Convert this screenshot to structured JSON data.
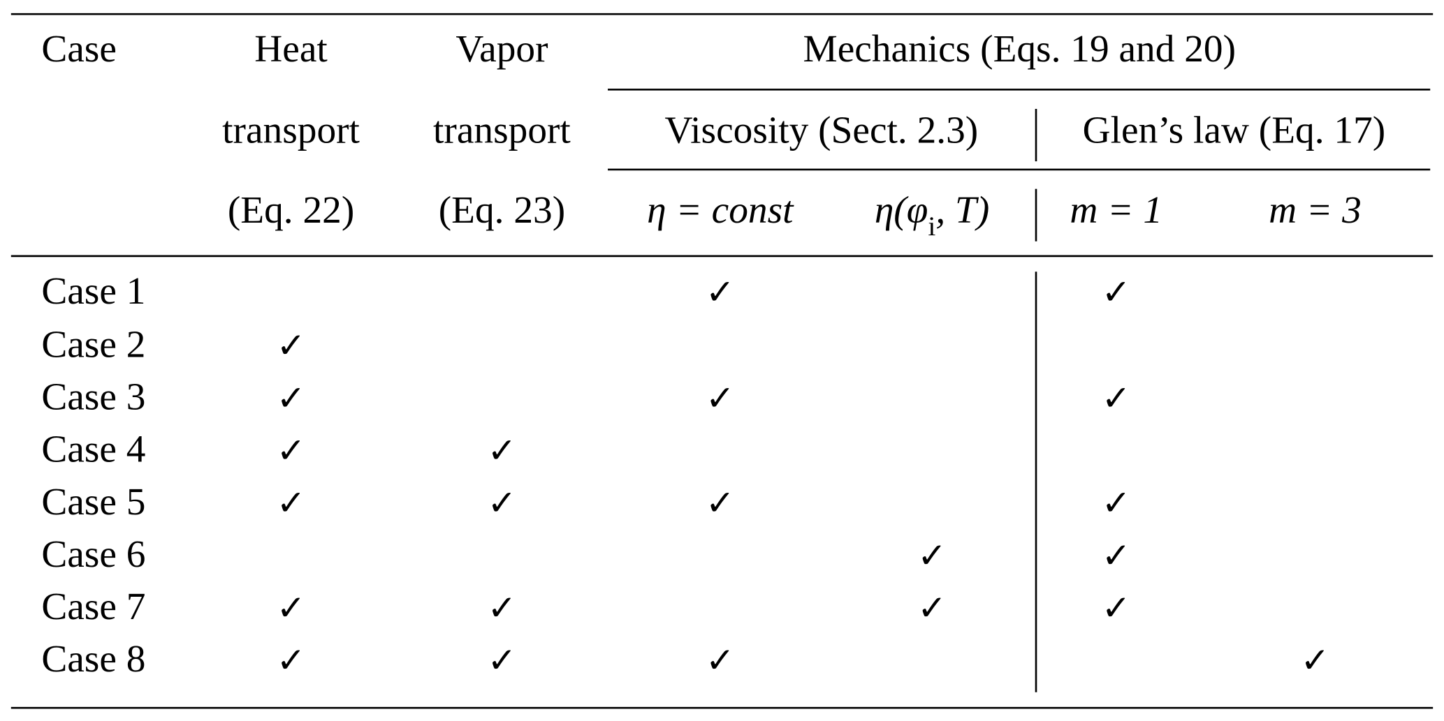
{
  "header": {
    "case": "Case",
    "heat": [
      "Heat",
      "transport",
      "(Eq. 22)"
    ],
    "vapor": [
      "Vapor",
      "transport",
      "(Eq. 23)"
    ],
    "mechanics": "Mechanics (Eqs. 19 and 20)",
    "viscosity": "Viscosity (Sect. 2.3)",
    "glen": "Glen’s law (Eq. 17)",
    "subcolumns": [
      {
        "parts": [
          "η = const"
        ]
      },
      {
        "parts": [
          "η(φ",
          "i",
          ", T)"
        ]
      },
      {
        "parts": [
          "m = 1"
        ]
      },
      {
        "parts": [
          "m = 3"
        ]
      }
    ]
  },
  "table": {
    "rows": [
      {
        "label": "Case 1",
        "checks": [
          null,
          null,
          "✓",
          null,
          "✓",
          null
        ]
      },
      {
        "label": "Case 2",
        "checks": [
          "✓",
          null,
          null,
          null,
          null,
          null
        ]
      },
      {
        "label": "Case 3",
        "checks": [
          "✓",
          null,
          "✓",
          null,
          "✓",
          null
        ]
      },
      {
        "label": "Case 4",
        "checks": [
          "✓",
          "✓",
          null,
          null,
          null,
          null
        ]
      },
      {
        "label": "Case 5",
        "checks": [
          "✓",
          "✓",
          "✓",
          null,
          "✓",
          null
        ]
      },
      {
        "label": "Case 6",
        "checks": [
          null,
          null,
          null,
          "✓",
          "✓",
          null
        ]
      },
      {
        "label": "Case 7",
        "checks": [
          "✓",
          "✓",
          null,
          "✓",
          "✓",
          null
        ]
      },
      {
        "label": "Case 8",
        "checks": [
          "✓",
          "✓",
          "✓",
          null,
          null,
          "✓"
        ]
      }
    ]
  }
}
